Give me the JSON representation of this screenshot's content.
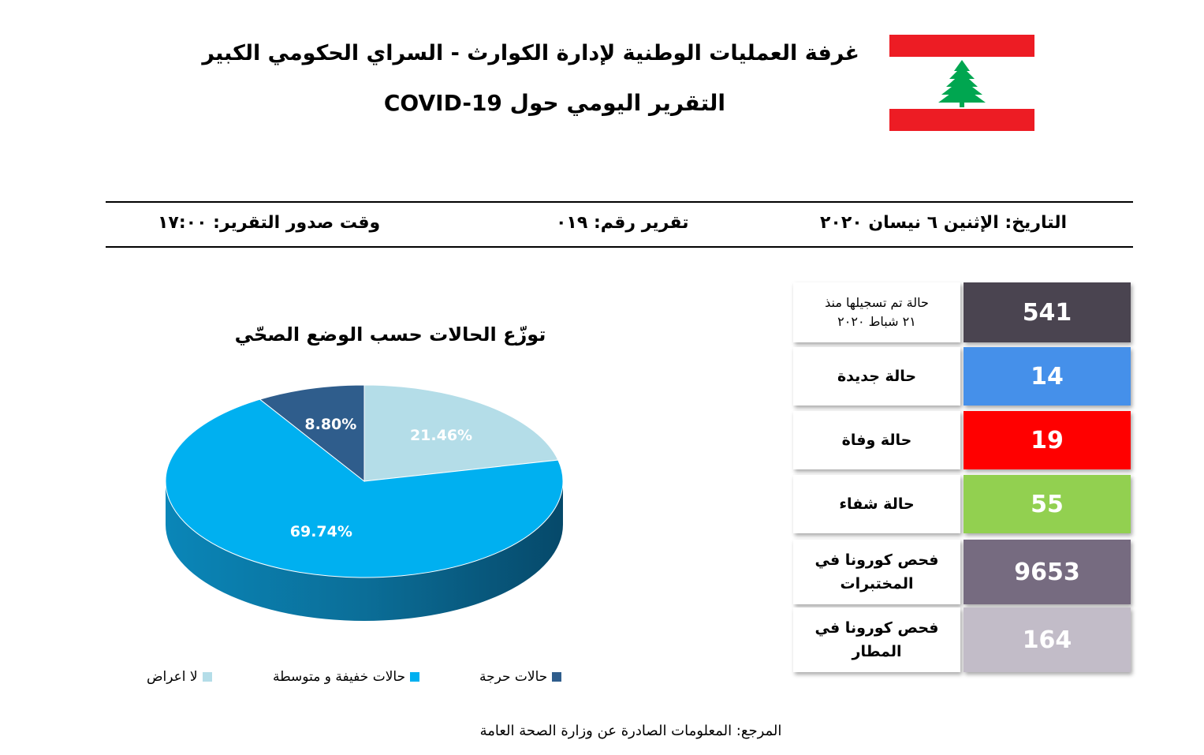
{
  "header": {
    "line1": "غرفة العمليات الوطنية لإدارة الكوارث - السراي الحكومي الكبير",
    "line2": "التقرير اليومي حول COVID-19"
  },
  "flag": {
    "name": "lebanon-flag-icon",
    "red": "#ed1c24",
    "white": "#ffffff",
    "cedar": "#00a650"
  },
  "meta": {
    "date": "التاريخ: الإثنين ٦ نيسان ٢٠٢٠",
    "report_number": "تقرير رقم: ٠١٩",
    "report_time": "وقت صدور التقرير: ١٧:٠٠"
  },
  "stats": [
    {
      "label_line1": "حالة تم تسجيلها منذ",
      "label_line2": "٢١ شباط ٢٠٢٠",
      "value": "541",
      "color": "#4a4450"
    },
    {
      "label_line1": "حالة جديدة",
      "label_line2": "",
      "value": "14",
      "color": "#4590ea"
    },
    {
      "label_line1": "حالة وفاة",
      "label_line2": "",
      "value": "19",
      "color": "#ff0000"
    },
    {
      "label_line1": "حالة شفاء",
      "label_line2": "",
      "value": "55",
      "color": "#92d050"
    },
    {
      "label_line1": "فحص كورونا في",
      "label_line2": "المختبرات",
      "value": "9653",
      "color": "#766b80"
    },
    {
      "label_line1": "فحص كورونا في",
      "label_line2": "المطار",
      "value": "164",
      "color": "#c2bcc8"
    }
  ],
  "chart_data": {
    "type": "pie",
    "title": "توزّع الحالات حسب الوضع الصحّي",
    "slices": [
      {
        "name": "لا اعراض",
        "value": 21.46,
        "label": "21.46%",
        "color": "#b4dde8"
      },
      {
        "name": "حالات خفيفة و متوسطة",
        "value": 69.74,
        "label": "69.74%",
        "color": "#00b0f0"
      },
      {
        "name": "حالات حرجة",
        "value": 8.8,
        "label": "8.80%",
        "color": "#2f5d8c"
      }
    ],
    "legend_position": "bottom",
    "style": "3d"
  },
  "source": "المرجع: المعلومات الصادرة عن وزارة الصحة العامة"
}
